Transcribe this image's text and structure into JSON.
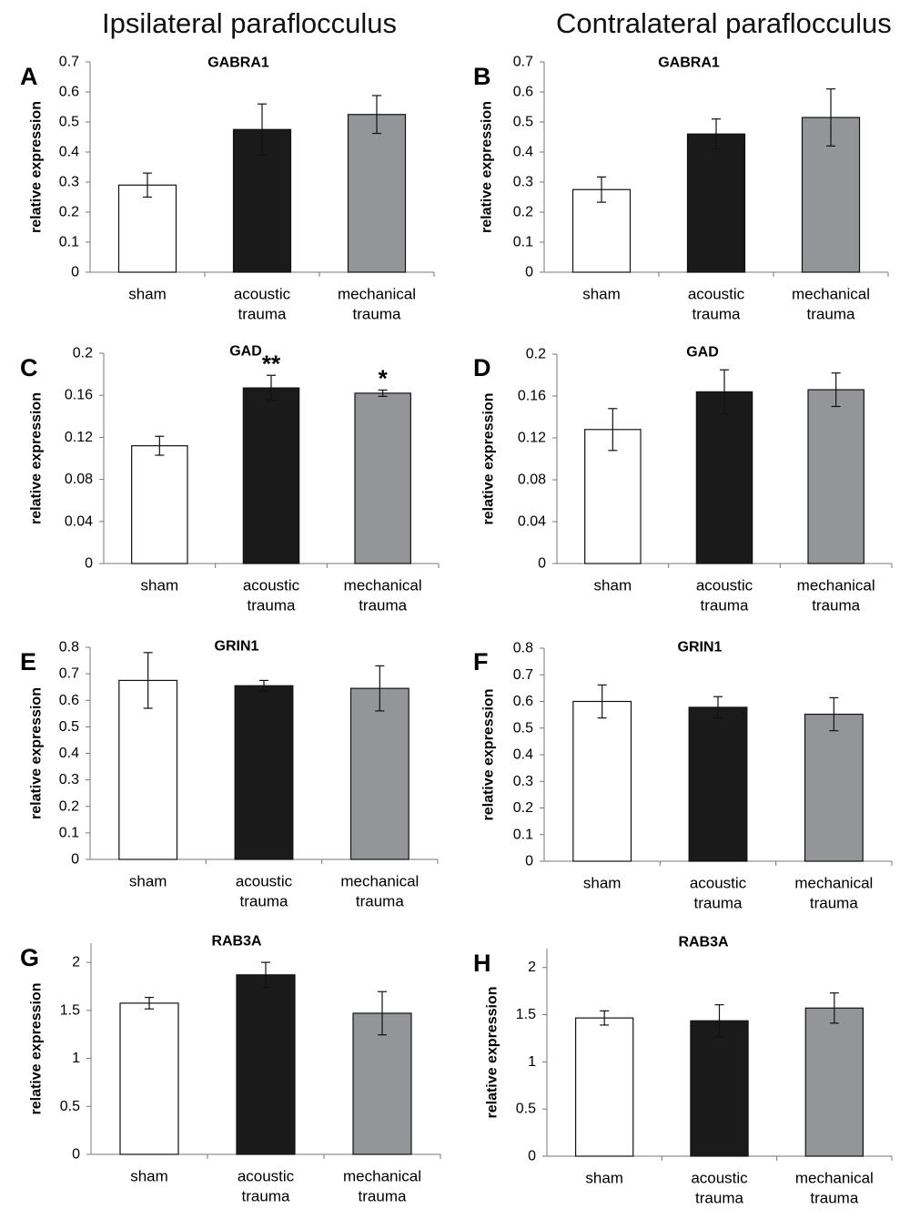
{
  "column_titles": {
    "left": "Ipsilateral paraflocculus",
    "right": "Contralateral paraflocculus"
  },
  "colors": {
    "sham": "#ffffff",
    "acoustic": "#1a1a1a",
    "mechanical": "#939598",
    "stroke": "#111111"
  },
  "chart_data": [
    {
      "panel": "A",
      "type": "bar",
      "title": "GABRA1",
      "ylabel": "relative expression",
      "categories": [
        [
          "sham"
        ],
        [
          "acoustic",
          "trauma"
        ],
        [
          "mechanical",
          "trauma"
        ]
      ],
      "values": [
        0.29,
        0.475,
        0.525
      ],
      "errors": [
        0.04,
        0.085,
        0.063
      ],
      "ylim": [
        0,
        0.7
      ],
      "yticks": [
        "0",
        "0.1",
        "0.2",
        "0.3",
        "0.4",
        "0.5",
        "0.6",
        "0.7"
      ],
      "significance": [
        "",
        "",
        ""
      ]
    },
    {
      "panel": "B",
      "type": "bar",
      "title": "GABRA1",
      "ylabel": "relative expression",
      "categories": [
        [
          "sham"
        ],
        [
          "acoustic",
          "trauma"
        ],
        [
          "mechanical",
          "trauma"
        ]
      ],
      "values": [
        0.275,
        0.46,
        0.515
      ],
      "errors": [
        0.042,
        0.05,
        0.095
      ],
      "ylim": [
        0,
        0.7
      ],
      "yticks": [
        "0",
        "0.1",
        "0.2",
        "0.3",
        "0.4",
        "0.5",
        "0.6",
        "0.7"
      ],
      "significance": [
        "",
        "",
        ""
      ]
    },
    {
      "panel": "C",
      "type": "bar",
      "title": "GAD",
      "ylabel": "relative expression",
      "categories": [
        [
          "sham"
        ],
        [
          "acoustic",
          "trauma"
        ],
        [
          "mechanical",
          "trauma"
        ]
      ],
      "values": [
        0.112,
        0.167,
        0.162
      ],
      "errors": [
        0.009,
        0.012,
        0.003
      ],
      "ylim": [
        0,
        0.2
      ],
      "yticks": [
        "0",
        "0.04",
        "0.08",
        "0.12",
        "0.16",
        "0.2"
      ],
      "significance": [
        "",
        "**",
        "*"
      ]
    },
    {
      "panel": "D",
      "type": "bar",
      "title": "GAD",
      "ylabel": "relative expression",
      "categories": [
        [
          "sham"
        ],
        [
          "acoustic",
          "trauma"
        ],
        [
          "mechanical",
          "trauma"
        ]
      ],
      "values": [
        0.128,
        0.164,
        0.166
      ],
      "errors": [
        0.02,
        0.021,
        0.016
      ],
      "ylim": [
        0,
        0.2
      ],
      "yticks": [
        "0",
        "0.04",
        "0.08",
        "0.12",
        "0.16",
        "0.2"
      ],
      "significance": [
        "",
        "",
        ""
      ]
    },
    {
      "panel": "E",
      "type": "bar",
      "title": "GRIN1",
      "ylabel": "relative expression",
      "categories": [
        [
          "sham"
        ],
        [
          "acoustic",
          "trauma"
        ],
        [
          "mechanical",
          "trauma"
        ]
      ],
      "values": [
        0.675,
        0.655,
        0.645
      ],
      "errors": [
        0.105,
        0.02,
        0.085
      ],
      "ylim": [
        0,
        0.8
      ],
      "yticks": [
        "0",
        "0.1",
        "0.2",
        "0.3",
        "0.4",
        "0.5",
        "0.6",
        "0.7",
        "0.8"
      ],
      "significance": [
        "",
        "",
        ""
      ]
    },
    {
      "panel": "F",
      "type": "bar",
      "title": "GRIN1",
      "ylabel": "relative expression",
      "categories": [
        [
          "sham"
        ],
        [
          "acoustic",
          "trauma"
        ],
        [
          "mechanical",
          "trauma"
        ]
      ],
      "values": [
        0.6,
        0.578,
        0.552
      ],
      "errors": [
        0.062,
        0.04,
        0.062
      ],
      "ylim": [
        0,
        0.8
      ],
      "yticks": [
        "0",
        "0.1",
        "0.2",
        "0.3",
        "0.4",
        "0.5",
        "0.6",
        "0.7",
        "0.8"
      ],
      "significance": [
        "",
        "",
        ""
      ]
    },
    {
      "panel": "G",
      "type": "bar",
      "title": "RAB3A",
      "ylabel": "relative expression",
      "categories": [
        [
          "sham"
        ],
        [
          "acoustic",
          "trauma"
        ],
        [
          "mechanical",
          "trauma"
        ]
      ],
      "values": [
        1.575,
        1.87,
        1.47
      ],
      "errors": [
        0.06,
        0.13,
        0.225
      ],
      "ylim": [
        0,
        2.2
      ],
      "yticks": [
        "0",
        "0.5",
        "1",
        "1.5",
        "2"
      ],
      "significance": [
        "",
        "",
        ""
      ]
    },
    {
      "panel": "H",
      "type": "bar",
      "title": "RAB3A",
      "ylabel": "relative expression",
      "categories": [
        [
          "sham"
        ],
        [
          "acoustic",
          "trauma"
        ],
        [
          "mechanical",
          "trauma"
        ]
      ],
      "values": [
        1.465,
        1.435,
        1.57
      ],
      "errors": [
        0.075,
        0.17,
        0.16
      ],
      "ylim": [
        0,
        2.2
      ],
      "yticks": [
        "0",
        "0.5",
        "1",
        "1.5",
        "2"
      ],
      "significance": [
        "",
        "",
        ""
      ]
    }
  ]
}
